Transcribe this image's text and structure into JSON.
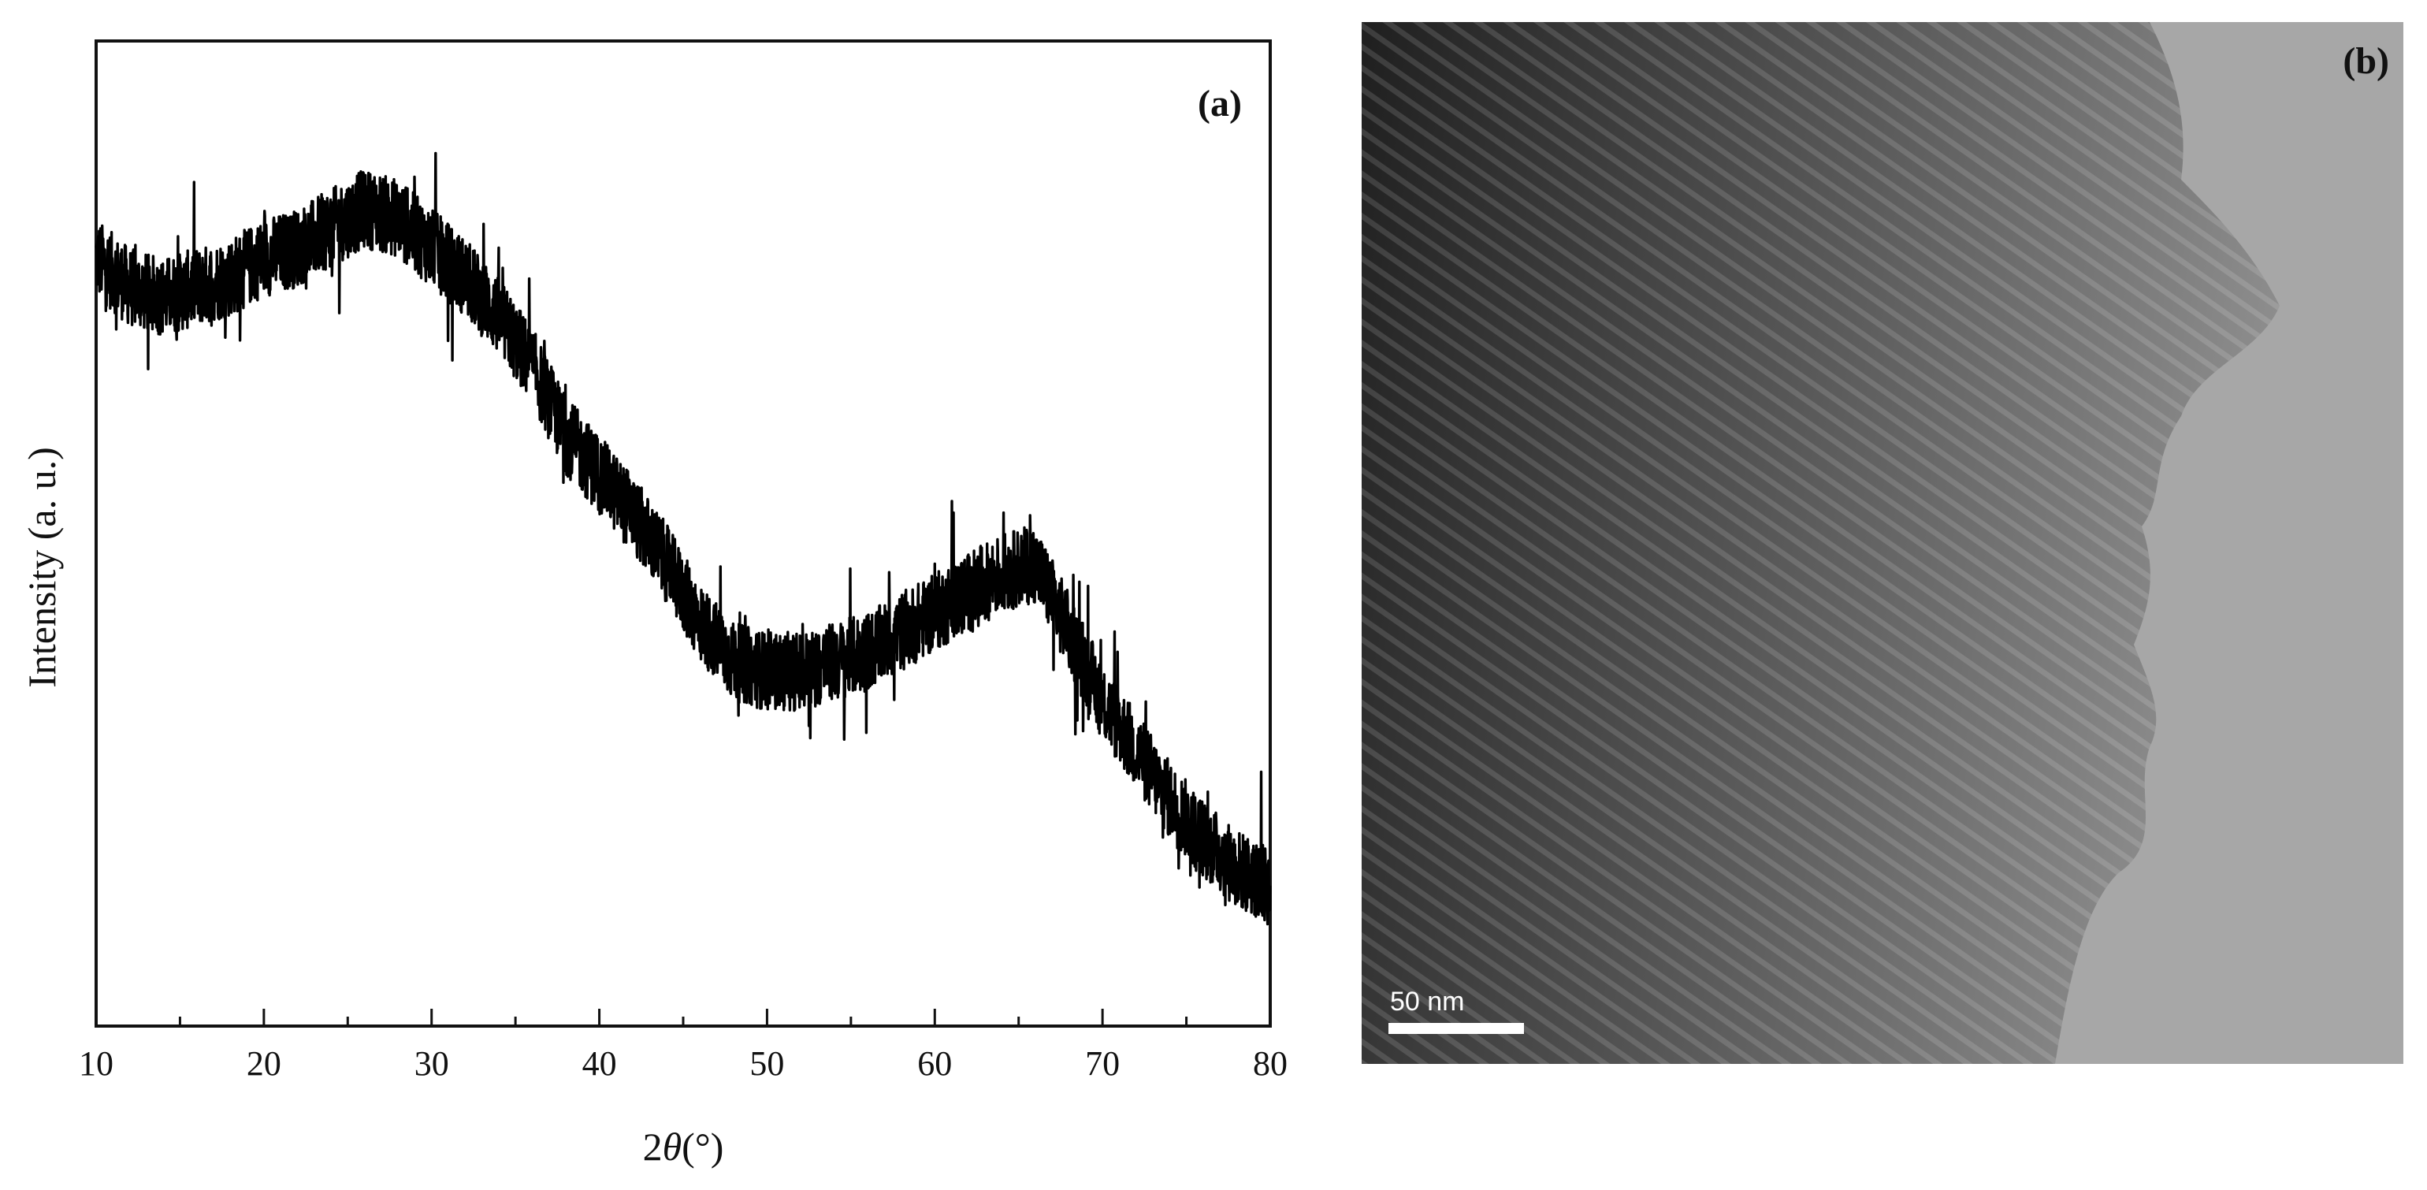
{
  "figure": {
    "panel_a_label": "(a)",
    "panel_b_label": "(b)",
    "scale_bar_label": "50 nm"
  },
  "chart_data": {
    "type": "line",
    "title": "",
    "xlabel": "2θ (°)",
    "xlabel_var": "θ",
    "xlabel_prefix": "2",
    "xlabel_unit": "(°)",
    "ylabel": "Intensity (a. u.)",
    "xlim": [
      10,
      80
    ],
    "ylim": [
      0,
      100
    ],
    "y_ticks_shown": false,
    "grid": false,
    "legend": "none",
    "x_ticks": [
      10,
      20,
      30,
      40,
      50,
      60,
      70,
      80
    ],
    "x_tick_labels": [
      "10",
      "20",
      "30",
      "40",
      "50",
      "60",
      "70",
      "80"
    ],
    "series": [
      {
        "line_color": "#000000",
        "x": [
          10,
          12,
          14,
          16,
          18,
          20,
          22,
          24,
          26,
          28,
          30,
          32,
          34,
          36,
          38,
          40,
          42,
          44,
          46,
          48,
          50,
          52,
          54,
          56,
          58,
          60,
          62,
          64,
          66,
          68,
          70,
          72,
          74,
          76,
          78,
          80
        ],
        "values": [
          78,
          75,
          74,
          75,
          76,
          78,
          79,
          81,
          83,
          82,
          79,
          76,
          72,
          67,
          60,
          56,
          52,
          47,
          41,
          37,
          36,
          36,
          37,
          38,
          40,
          42,
          44,
          46,
          47,
          40,
          33,
          28,
          23,
          19,
          16,
          14
        ],
        "noise_amplitude": 4
      }
    ]
  }
}
